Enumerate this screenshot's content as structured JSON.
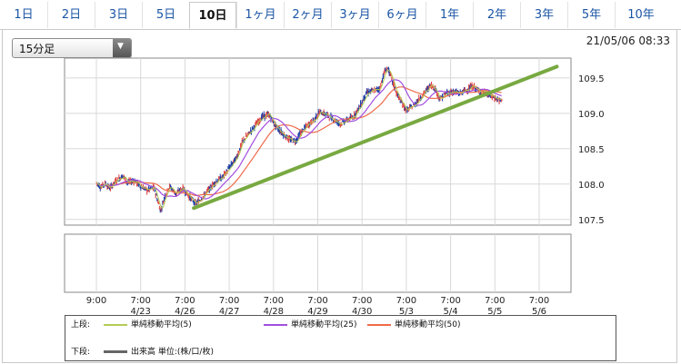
{
  "tabs": [
    {
      "label": "1日",
      "active": false
    },
    {
      "label": "2日",
      "active": false
    },
    {
      "label": "3日",
      "active": false
    },
    {
      "label": "5日",
      "active": false
    },
    {
      "label": "10日",
      "active": true
    },
    {
      "label": "1ヶ月",
      "active": false
    },
    {
      "label": "2ヶ月",
      "active": false
    },
    {
      "label": "3ヶ月",
      "active": false
    },
    {
      "label": "6ヶ月",
      "active": false
    },
    {
      "label": "1年",
      "active": false
    },
    {
      "label": "2年",
      "active": false
    },
    {
      "label": "3年",
      "active": false
    },
    {
      "label": "5年",
      "active": false
    },
    {
      "label": "10年",
      "active": false
    }
  ],
  "interval_select": {
    "value": "15分足"
  },
  "timestamp": "21/05/06 08:33",
  "legend": {
    "upper_label": "上段:",
    "lower_label": "下段:",
    "upper_items": [
      {
        "name": "単純移動平均(5)",
        "color": "#b5cc55"
      },
      {
        "name": "単純移動平均(25)",
        "color": "#a24ee0"
      },
      {
        "name": "単純移動平均(50)",
        "color": "#ef6a4a"
      }
    ],
    "lower_items": [
      {
        "name": "出来高 単位:(株/口/枚)",
        "color": "#666666"
      }
    ]
  },
  "chart_data": {
    "type": "line",
    "title": "",
    "xlabel": "",
    "ylabel": "",
    "ylim": [
      107.42,
      109.78
    ],
    "y_ticks": [
      "109.5",
      "109.0",
      "108.5",
      "108.0",
      "107.5"
    ],
    "x_ticks": [
      {
        "time": "9:00",
        "date": ""
      },
      {
        "time": "7:00",
        "date": "4/23"
      },
      {
        "time": "7:00",
        "date": "4/26"
      },
      {
        "time": "7:00",
        "date": "4/27"
      },
      {
        "time": "7:00",
        "date": "4/28"
      },
      {
        "time": "7:00",
        "date": "4/29"
      },
      {
        "time": "7:00",
        "date": "4/30"
      },
      {
        "time": "7:00",
        "date": "5/3"
      },
      {
        "time": "7:00",
        "date": "5/4"
      },
      {
        "time": "7:00",
        "date": "5/5"
      },
      {
        "time": "7:00",
        "date": "5/6"
      }
    ],
    "price_path": [
      [
        0.0,
        108.02
      ],
      [
        0.1,
        107.96
      ],
      [
        0.2,
        108.01
      ],
      [
        0.3,
        107.94
      ],
      [
        0.45,
        108.05
      ],
      [
        0.6,
        108.12
      ],
      [
        0.7,
        108.02
      ],
      [
        0.85,
        108.05
      ],
      [
        1.0,
        107.97
      ],
      [
        1.15,
        107.91
      ],
      [
        1.3,
        107.95
      ],
      [
        1.45,
        107.62
      ],
      [
        1.55,
        107.84
      ],
      [
        1.65,
        107.97
      ],
      [
        1.8,
        107.86
      ],
      [
        1.95,
        107.94
      ],
      [
        2.1,
        107.82
      ],
      [
        2.25,
        107.72
      ],
      [
        2.4,
        107.82
      ],
      [
        2.55,
        107.93
      ],
      [
        2.7,
        108.04
      ],
      [
        2.85,
        108.1
      ],
      [
        3.0,
        108.23
      ],
      [
        3.15,
        108.36
      ],
      [
        3.3,
        108.6
      ],
      [
        3.45,
        108.72
      ],
      [
        3.6,
        108.84
      ],
      [
        3.75,
        108.95
      ],
      [
        3.9,
        108.98
      ],
      [
        4.05,
        108.82
      ],
      [
        4.2,
        108.72
      ],
      [
        4.35,
        108.63
      ],
      [
        4.5,
        108.61
      ],
      [
        4.6,
        108.71
      ],
      [
        4.75,
        108.82
      ],
      [
        4.9,
        108.9
      ],
      [
        5.05,
        109.02
      ],
      [
        5.2,
        108.98
      ],
      [
        5.35,
        108.92
      ],
      [
        5.5,
        108.85
      ],
      [
        5.65,
        108.9
      ],
      [
        5.8,
        108.95
      ],
      [
        5.95,
        109.1
      ],
      [
        6.1,
        109.29
      ],
      [
        6.25,
        109.32
      ],
      [
        6.4,
        109.35
      ],
      [
        6.5,
        109.58
      ],
      [
        6.58,
        109.64
      ],
      [
        6.68,
        109.46
      ],
      [
        6.78,
        109.28
      ],
      [
        6.88,
        109.16
      ],
      [
        7.0,
        109.04
      ],
      [
        7.15,
        109.1
      ],
      [
        7.3,
        109.21
      ],
      [
        7.45,
        109.32
      ],
      [
        7.55,
        109.4
      ],
      [
        7.65,
        109.35
      ],
      [
        7.75,
        109.2
      ],
      [
        7.9,
        109.28
      ],
      [
        8.05,
        109.31
      ],
      [
        8.2,
        109.28
      ],
      [
        8.35,
        109.33
      ],
      [
        8.5,
        109.38
      ],
      [
        8.65,
        109.31
      ],
      [
        8.8,
        109.28
      ],
      [
        8.95,
        109.23
      ],
      [
        9.05,
        109.2
      ],
      [
        9.15,
        109.17
      ]
    ],
    "trendline": [
      [
        2.2,
        107.66
      ],
      [
        10.4,
        109.66
      ]
    ],
    "series": [
      {
        "name": "単純移動平均(5)",
        "color": "#b5cc55"
      },
      {
        "name": "単純移動平均(25)",
        "color": "#a24ee0"
      },
      {
        "name": "単純移動平均(50)",
        "color": "#ef6a4a"
      }
    ],
    "trendline_color": "#78a941",
    "grid": true
  }
}
